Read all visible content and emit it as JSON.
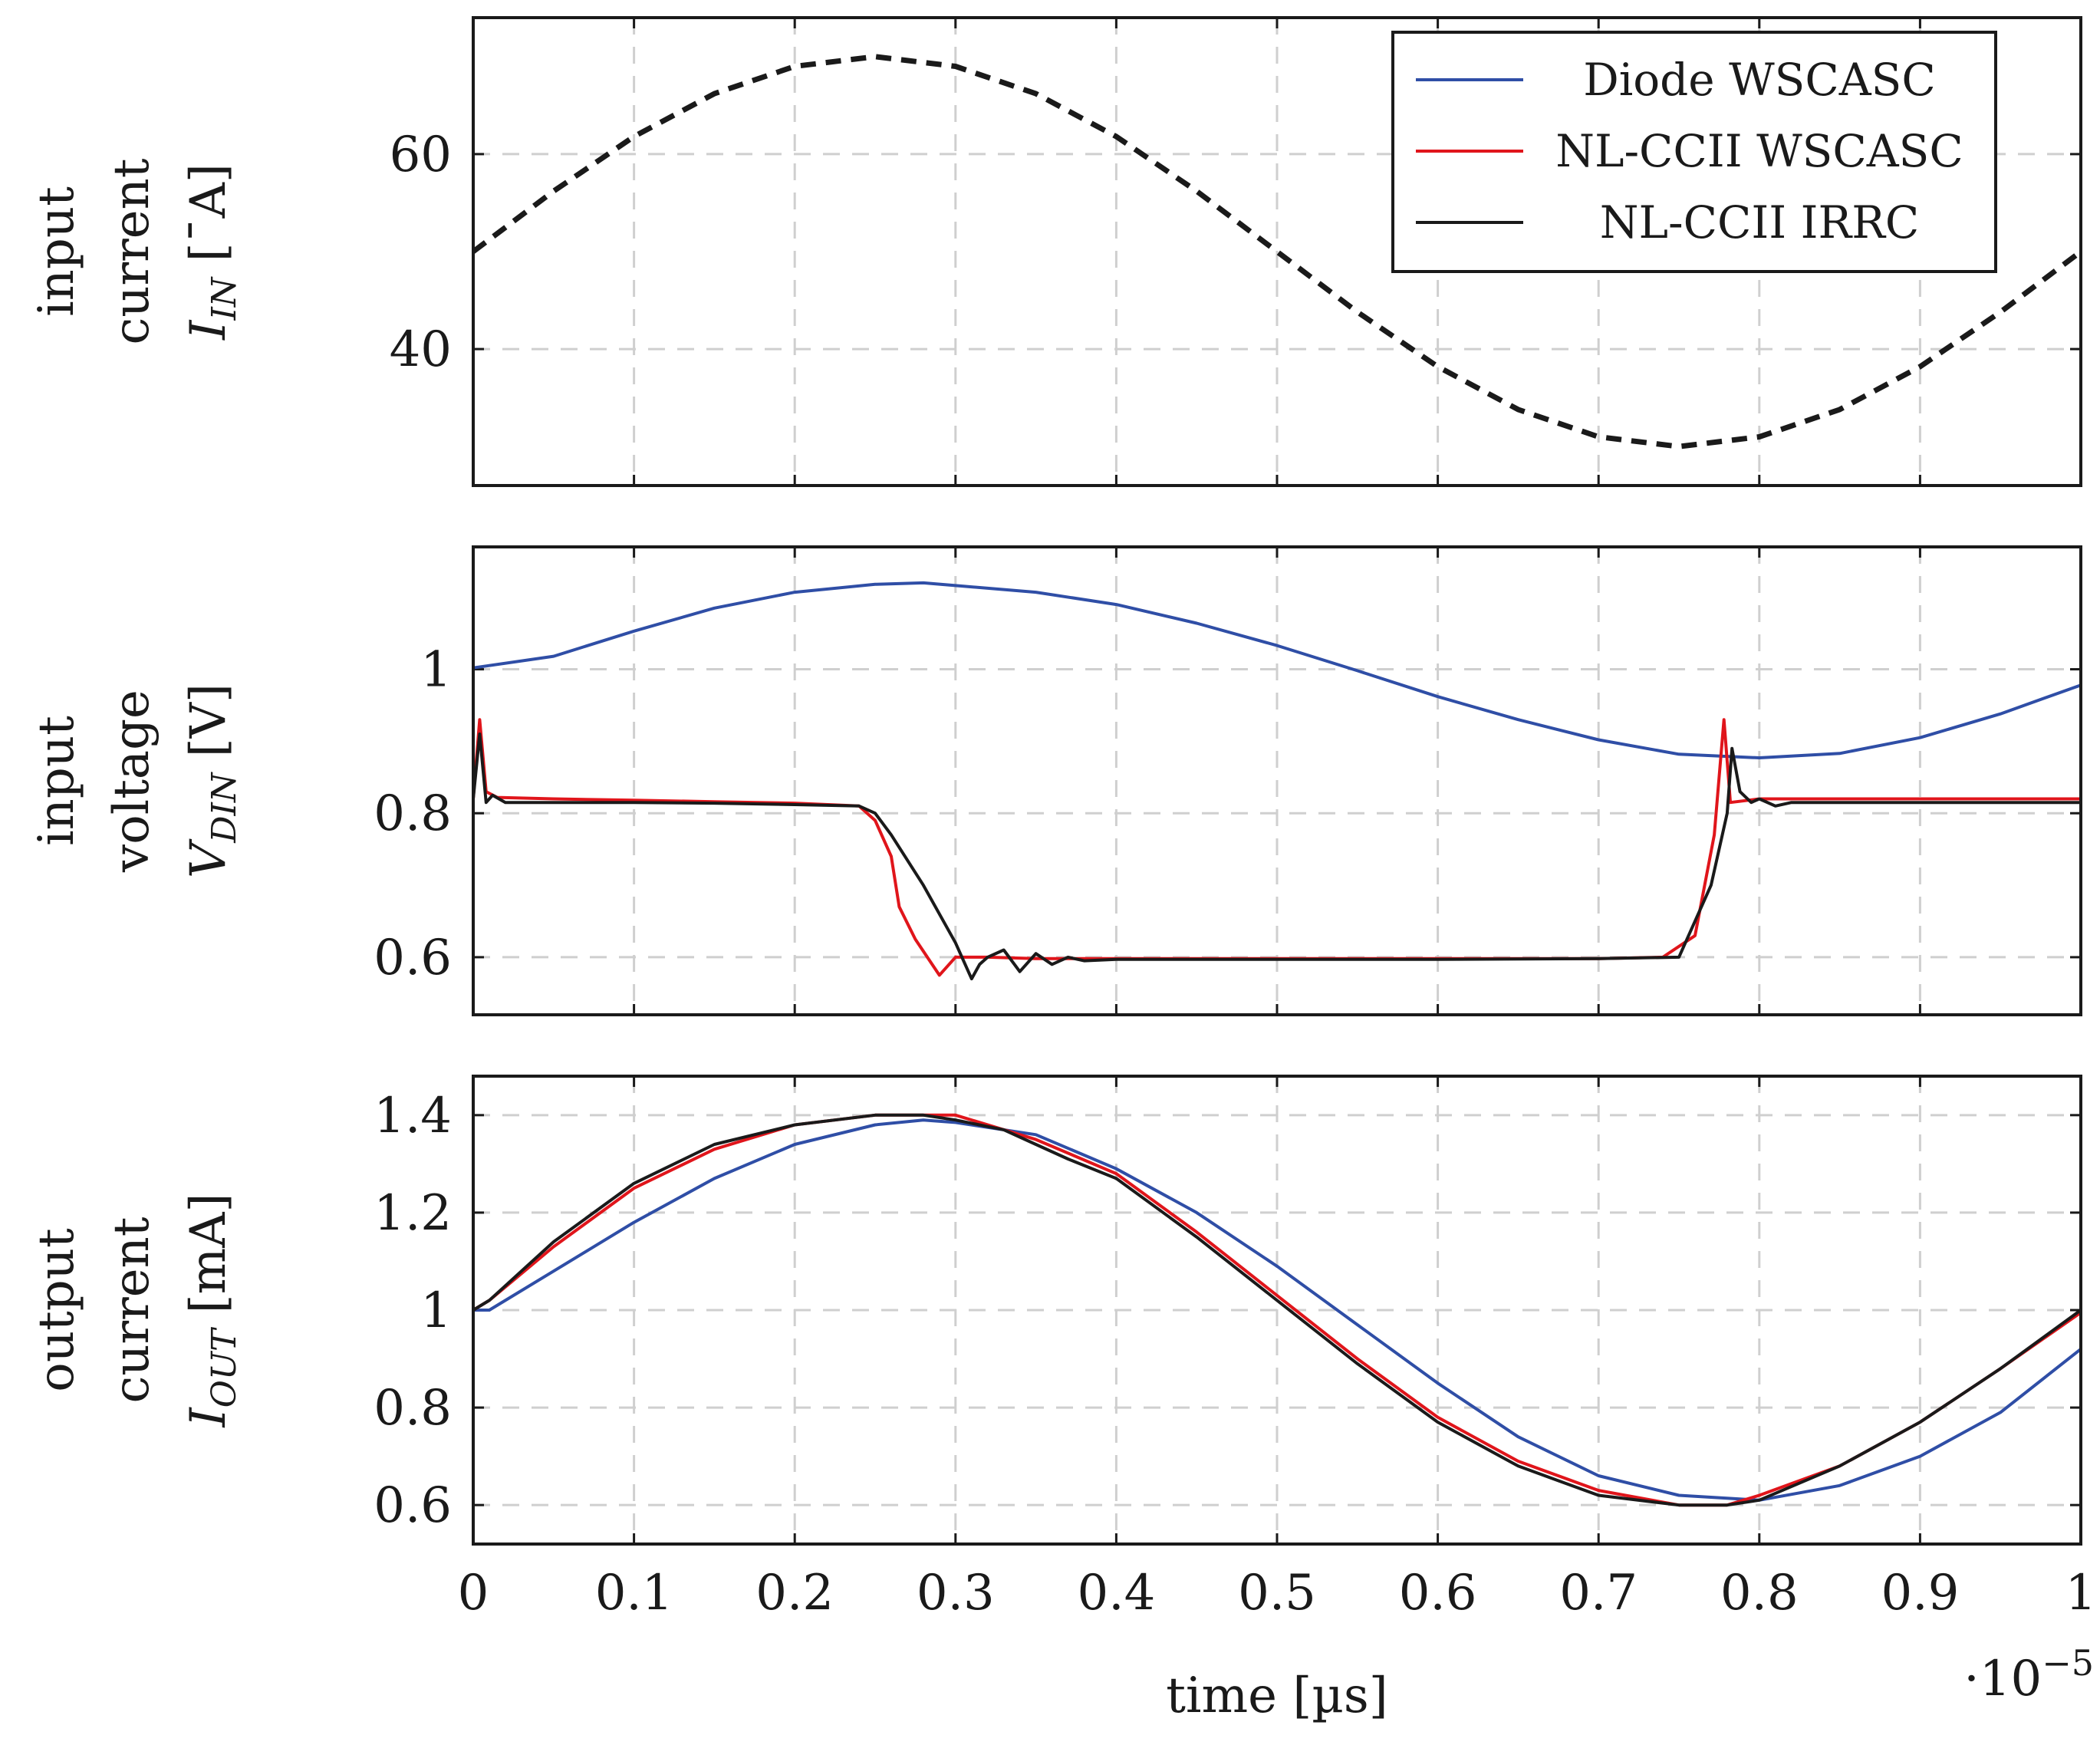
{
  "chart_data": [
    {
      "type": "line",
      "panel": "input-current",
      "ylabel_lines": [
        "input",
        "current",
        "I_IN [¯A]"
      ],
      "ylabel": "input current I_IN [¯A]",
      "xlim": [
        0,
        1
      ],
      "ylim": [
        26,
        74
      ],
      "yticks": [
        40,
        60
      ],
      "ytick_labels": [
        "40",
        "60"
      ],
      "grid": true,
      "series": [
        {
          "line_style": "dashed",
          "color": "#1a1a1a",
          "x": [
            0,
            0.05,
            0.1,
            0.15,
            0.2,
            0.25,
            0.3,
            0.35,
            0.4,
            0.45,
            0.5,
            0.55,
            0.6,
            0.65,
            0.7,
            0.75,
            0.8,
            0.85,
            0.9,
            0.95,
            1.0
          ],
          "values": [
            50,
            56.2,
            61.8,
            66.2,
            69.0,
            70.0,
            69.0,
            66.2,
            61.8,
            56.2,
            50,
            43.8,
            38.2,
            33.8,
            31.0,
            30.0,
            31.0,
            33.8,
            38.2,
            43.8,
            50
          ]
        }
      ]
    },
    {
      "type": "line",
      "panel": "input-voltage",
      "ylabel_lines": [
        "input",
        "voltage",
        "V_DIN [V]"
      ],
      "ylabel": "input voltage V_DIN [V]",
      "xlim": [
        0,
        1
      ],
      "ylim": [
        0.52,
        1.17
      ],
      "yticks": [
        0.6,
        0.8,
        1.0
      ],
      "ytick_labels": [
        "0.6",
        "0.8",
        "1"
      ],
      "grid": true,
      "series": [
        {
          "name": "Diode WSCASC",
          "color": "#2f4ea6",
          "x": [
            0,
            0.05,
            0.1,
            0.15,
            0.2,
            0.25,
            0.28,
            0.35,
            0.4,
            0.45,
            0.5,
            0.55,
            0.6,
            0.65,
            0.7,
            0.75,
            0.8,
            0.85,
            0.9,
            0.95,
            1.0
          ],
          "values": [
            1.002,
            1.018,
            1.053,
            1.085,
            1.107,
            1.118,
            1.12,
            1.107,
            1.09,
            1.064,
            1.033,
            0.998,
            0.962,
            0.93,
            0.902,
            0.882,
            0.877,
            0.883,
            0.905,
            0.938,
            0.978
          ]
        },
        {
          "name": "NL-CCII WSCASC",
          "color": "#e0151b",
          "x": [
            0,
            0.004,
            0.008,
            0.015,
            0.05,
            0.1,
            0.15,
            0.2,
            0.24,
            0.25,
            0.26,
            0.265,
            0.275,
            0.29,
            0.3,
            0.32,
            0.35,
            0.4,
            0.5,
            0.6,
            0.7,
            0.74,
            0.76,
            0.772,
            0.778,
            0.782,
            0.8,
            0.85,
            0.9,
            0.95,
            1.0
          ],
          "values": [
            0.82,
            0.93,
            0.83,
            0.822,
            0.82,
            0.818,
            0.816,
            0.814,
            0.81,
            0.79,
            0.74,
            0.67,
            0.625,
            0.575,
            0.6,
            0.6,
            0.598,
            0.598,
            0.598,
            0.598,
            0.598,
            0.6,
            0.63,
            0.77,
            0.93,
            0.815,
            0.82,
            0.82,
            0.82,
            0.82,
            0.82
          ]
        },
        {
          "name": "NL-CCII IRRC",
          "color": "#1a1a1a",
          "x": [
            0,
            0.004,
            0.008,
            0.012,
            0.02,
            0.05,
            0.1,
            0.15,
            0.2,
            0.24,
            0.25,
            0.26,
            0.28,
            0.3,
            0.31,
            0.315,
            0.32,
            0.33,
            0.34,
            0.35,
            0.36,
            0.37,
            0.38,
            0.4,
            0.5,
            0.6,
            0.7,
            0.75,
            0.77,
            0.78,
            0.783,
            0.788,
            0.795,
            0.8,
            0.81,
            0.82,
            0.85,
            0.9,
            1.0
          ],
          "values": [
            0.82,
            0.91,
            0.815,
            0.825,
            0.815,
            0.815,
            0.815,
            0.814,
            0.812,
            0.81,
            0.8,
            0.77,
            0.7,
            0.62,
            0.57,
            0.59,
            0.6,
            0.61,
            0.58,
            0.605,
            0.59,
            0.6,
            0.595,
            0.597,
            0.597,
            0.597,
            0.598,
            0.6,
            0.7,
            0.8,
            0.89,
            0.83,
            0.815,
            0.82,
            0.81,
            0.815,
            0.815,
            0.815,
            0.815
          ]
        }
      ]
    },
    {
      "type": "line",
      "panel": "output-current",
      "ylabel_lines": [
        "output",
        "current",
        "I_OUT [mA]"
      ],
      "ylabel": "output current I_OUT [mA]",
      "xlabel": "time [µs]",
      "x_multiplier": "·10⁻⁵",
      "xlim": [
        0,
        1
      ],
      "ylim": [
        0.52,
        1.48
      ],
      "xticks": [
        0,
        0.1,
        0.2,
        0.3,
        0.4,
        0.5,
        0.6,
        0.7,
        0.8,
        0.9,
        1.0
      ],
      "xtick_labels": [
        "0",
        "0.1",
        "0.2",
        "0.3",
        "0.4",
        "0.5",
        "0.6",
        "0.7",
        "0.8",
        "0.9",
        "1"
      ],
      "yticks": [
        0.6,
        0.8,
        1.0,
        1.2,
        1.4
      ],
      "ytick_labels": [
        "0.6",
        "0.8",
        "1",
        "1.2",
        "1.4"
      ],
      "grid": true,
      "series": [
        {
          "name": "Diode WSCASC",
          "color": "#2f4ea6",
          "x": [
            0,
            0.01,
            0.05,
            0.1,
            0.15,
            0.2,
            0.25,
            0.28,
            0.3,
            0.35,
            0.4,
            0.45,
            0.5,
            0.55,
            0.6,
            0.65,
            0.7,
            0.75,
            0.8,
            0.85,
            0.9,
            0.95,
            1.0
          ],
          "values": [
            1.0,
            1.0,
            1.08,
            1.18,
            1.27,
            1.34,
            1.38,
            1.39,
            1.385,
            1.36,
            1.29,
            1.2,
            1.09,
            0.97,
            0.85,
            0.74,
            0.66,
            0.62,
            0.61,
            0.64,
            0.7,
            0.79,
            0.92
          ]
        },
        {
          "name": "NL-CCII WSCASC",
          "color": "#e0151b",
          "x": [
            0,
            0.01,
            0.05,
            0.1,
            0.15,
            0.2,
            0.25,
            0.28,
            0.3,
            0.35,
            0.4,
            0.45,
            0.5,
            0.55,
            0.6,
            0.65,
            0.7,
            0.75,
            0.78,
            0.8,
            0.85,
            0.9,
            0.95,
            1.0
          ],
          "values": [
            1.0,
            1.02,
            1.13,
            1.25,
            1.33,
            1.38,
            1.4,
            1.4,
            1.4,
            1.35,
            1.28,
            1.16,
            1.03,
            0.9,
            0.78,
            0.69,
            0.63,
            0.6,
            0.6,
            0.62,
            0.68,
            0.77,
            0.88,
            0.995
          ]
        },
        {
          "name": "NL-CCII IRRC",
          "color": "#1a1a1a",
          "x": [
            0,
            0.01,
            0.05,
            0.1,
            0.15,
            0.2,
            0.25,
            0.28,
            0.3,
            0.33,
            0.35,
            0.37,
            0.4,
            0.45,
            0.5,
            0.55,
            0.6,
            0.65,
            0.7,
            0.75,
            0.78,
            0.8,
            0.85,
            0.9,
            0.95,
            1.0
          ],
          "values": [
            1.0,
            1.02,
            1.14,
            1.26,
            1.34,
            1.38,
            1.4,
            1.4,
            1.39,
            1.37,
            1.34,
            1.31,
            1.27,
            1.15,
            1.02,
            0.89,
            0.77,
            0.68,
            0.62,
            0.6,
            0.6,
            0.61,
            0.68,
            0.77,
            0.88,
            1.0
          ]
        }
      ]
    }
  ],
  "legend": {
    "position": "top-right",
    "entries": [
      {
        "label": "Diode WSCASC",
        "color": "#2f4ea6"
      },
      {
        "label": "NL-CCII WSCASC",
        "color": "#e0151b"
      },
      {
        "label": "NL-CCII IRRC",
        "color": "#1a1a1a"
      }
    ]
  }
}
